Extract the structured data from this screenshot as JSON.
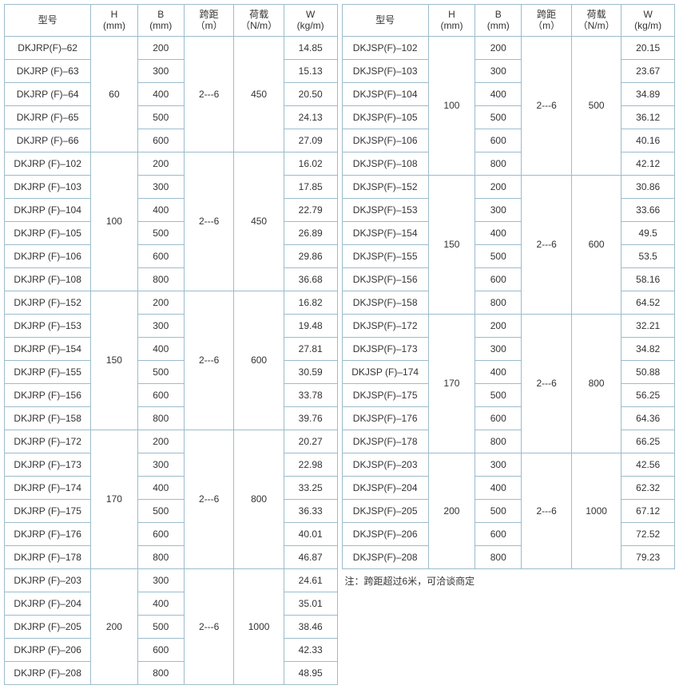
{
  "headers": {
    "model": "型号",
    "H": "H",
    "H_unit": "(mm)",
    "B": "B",
    "B_unit": "(mm)",
    "span": "跨距",
    "span_unit": "（m）",
    "load": "荷载",
    "load_unit": "（N/m）",
    "W": "W",
    "W_unit": "(kg/m)"
  },
  "left": {
    "groups": [
      {
        "H": "60",
        "span": "2---6",
        "load": "450",
        "rows": [
          {
            "model": "DKJRP(F)–62",
            "B": "200",
            "W": "14.85"
          },
          {
            "model": "DKJRP (F)–63",
            "B": "300",
            "W": "15.13"
          },
          {
            "model": "DKJRP (F)–64",
            "B": "400",
            "W": "20.50"
          },
          {
            "model": "DKJRP (F)–65",
            "B": "500",
            "W": "24.13"
          },
          {
            "model": "DKJRP (F)–66",
            "B": "600",
            "W": "27.09"
          }
        ]
      },
      {
        "H": "100",
        "span": "2---6",
        "load": "450",
        "rows": [
          {
            "model": "DKJRP (F)–102",
            "B": "200",
            "W": "16.02"
          },
          {
            "model": "DKJRP (F)–103",
            "B": "300",
            "W": "17.85"
          },
          {
            "model": "DKJRP (F)–104",
            "B": "400",
            "W": "22.79"
          },
          {
            "model": "DKJRP (F)–105",
            "B": "500",
            "W": "26.89"
          },
          {
            "model": "DKJRP (F)–106",
            "B": "600",
            "W": "29.86"
          },
          {
            "model": "DKJRP (F)–108",
            "B": "800",
            "W": "36.68"
          }
        ]
      },
      {
        "H": "150",
        "span": "2---6",
        "load": "600",
        "rows": [
          {
            "model": "DKJRP (F)–152",
            "B": "200",
            "W": "16.82"
          },
          {
            "model": "DKJRP (F)–153",
            "B": "300",
            "W": "19.48"
          },
          {
            "model": "DKJRP (F)–154",
            "B": "400",
            "W": "27.81"
          },
          {
            "model": "DKJRP (F)–155",
            "B": "500",
            "W": "30.59"
          },
          {
            "model": "DKJRP (F)–156",
            "B": "600",
            "W": "33.78"
          },
          {
            "model": "DKJRP (F)–158",
            "B": "800",
            "W": "39.76"
          }
        ]
      },
      {
        "H": "170",
        "span": "2---6",
        "load": "800",
        "rows": [
          {
            "model": "DKJRP (F)–172",
            "B": "200",
            "W": "20.27"
          },
          {
            "model": "DKJRP (F)–173",
            "B": "300",
            "W": "22.98"
          },
          {
            "model": "DKJRP (F)–174",
            "B": "400",
            "W": "33.25"
          },
          {
            "model": "DKJRP (F)–175",
            "B": "500",
            "W": "36.33"
          },
          {
            "model": "DKJRP (F)–176",
            "B": "600",
            "W": "40.01"
          },
          {
            "model": "DKJRP (F)–178",
            "B": "800",
            "W": "46.87"
          }
        ]
      },
      {
        "H": "200",
        "span": "2---6",
        "load": "1000",
        "rows": [
          {
            "model": "DKJRP (F)–203",
            "B": "300",
            "W": "24.61"
          },
          {
            "model": "DKJRP (F)–204",
            "B": "400",
            "W": "35.01"
          },
          {
            "model": "DKJRP (F)–205",
            "B": "500",
            "W": "38.46"
          },
          {
            "model": "DKJRP (F)–206",
            "B": "600",
            "W": "42.33"
          },
          {
            "model": "DKJRP (F)–208",
            "B": "800",
            "W": "48.95"
          }
        ]
      }
    ]
  },
  "right": {
    "groups": [
      {
        "H": "100",
        "span": "2---6",
        "load": "500",
        "rows": [
          {
            "model": "DKJSP(F)–102",
            "B": "200",
            "W": "20.15"
          },
          {
            "model": "DKJSP(F)–103",
            "B": "300",
            "W": "23.67"
          },
          {
            "model": "DKJSP(F)–104",
            "B": "400",
            "W": "34.89"
          },
          {
            "model": "DKJSP(F)–105",
            "B": "500",
            "W": "36.12"
          },
          {
            "model": "DKJSP(F)–106",
            "B": "600",
            "W": "40.16"
          },
          {
            "model": "DKJSP(F)–108",
            "B": "800",
            "W": "42.12"
          }
        ]
      },
      {
        "H": "150",
        "span": "2---6",
        "load": "600",
        "rows": [
          {
            "model": "DKJSP(F)–152",
            "B": "200",
            "W": "30.86"
          },
          {
            "model": "DKJSP(F)–153",
            "B": "300",
            "W": "33.66"
          },
          {
            "model": "DKJSP(F)–154",
            "B": "400",
            "W": "49.5"
          },
          {
            "model": "DKJSP(F)–155",
            "B": "500",
            "W": "53.5"
          },
          {
            "model": "DKJSP(F)–156",
            "B": "600",
            "W": "58.16"
          },
          {
            "model": "DKJSP(F)–158",
            "B": "800",
            "W": "64.52"
          }
        ]
      },
      {
        "H": "170",
        "span": "2---6",
        "load": "800",
        "rows": [
          {
            "model": "DKJSP(F)–172",
            "B": "200",
            "W": "32.21"
          },
          {
            "model": "DKJSP(F)–173",
            "B": "300",
            "W": "34.82"
          },
          {
            "model": "DKJSP (F)–174",
            "B": "400",
            "W": "50.88"
          },
          {
            "model": "DKJSP(F)–175",
            "B": "500",
            "W": "56.25"
          },
          {
            "model": "DKJSP(F)–176",
            "B": "600",
            "W": "64.36"
          },
          {
            "model": "DKJSP(F)–178",
            "B": "800",
            "W": "66.25"
          }
        ]
      },
      {
        "H": "200",
        "span": "2---6",
        "load": "1000",
        "rows": [
          {
            "model": "DKJSP(F)–203",
            "B": "300",
            "W": "42.56"
          },
          {
            "model": "DKJSP(F)–204",
            "B": "400",
            "W": "62.32"
          },
          {
            "model": "DKJSP(F)–205",
            "B": "500",
            "W": "67.12"
          },
          {
            "model": "DKJSP(F)–206",
            "B": "600",
            "W": "72.52"
          },
          {
            "model": "DKJSP(F)–208",
            "B": "800",
            "W": "79.23"
          }
        ]
      }
    ]
  },
  "note": "注：跨距超过6米，可洽谈商定",
  "styling": {
    "border_color": "#9bbccc",
    "background_color": "#ffffff",
    "text_color": "#333333",
    "font_size": 12,
    "col_widths_pct": [
      26,
      14,
      14,
      15,
      15,
      16
    ]
  }
}
